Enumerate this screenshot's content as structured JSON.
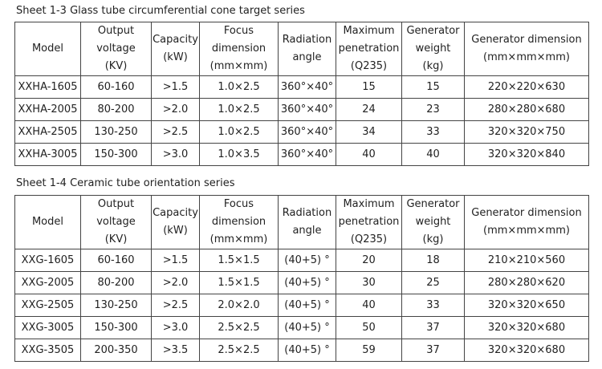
{
  "tables": [
    {
      "caption": "Sheet 1-3 Glass tube circumferential cone target series",
      "header": [
        "Model",
        "Output\nvoltage\n(KV)",
        "Capacity\n(kW)",
        "Focus\ndimension\n(mm×mm)",
        "Radiation\nangle",
        "Maximum\npenetration\n(Q235)",
        "Generator\nweight\n(kg)",
        "Generator dimension\n(mm×mm×mm)"
      ],
      "rows": [
        [
          "XXHA-1605",
          "60-160",
          ">1.5",
          "1.0×2.5",
          "360°×40°",
          "15",
          "15",
          "220×220×630"
        ],
        [
          "XXHA-2005",
          "80-200",
          ">2.0",
          "1.0×2.5",
          "360°×40°",
          "24",
          "23",
          "280×280×680"
        ],
        [
          "XXHA-2505",
          "130-250",
          ">2.5",
          "1.0×2.5",
          "360°×40°",
          "34",
          "33",
          "320×320×750"
        ],
        [
          "XXHA-3005",
          "150-300",
          ">3.0",
          "1.0×3.5",
          "360°×40°",
          "40",
          "40",
          "320×320×840"
        ]
      ]
    },
    {
      "caption": "Sheet 1-4 Ceramic tube orientation series",
      "header": [
        "Model",
        "Output\nvoltage\n(KV)",
        "Capacity\n(kW)",
        "Focus\ndimension\n(mm×mm)",
        "Radiation\nangle",
        "Maximum\npenetration\n(Q235)",
        "Generator\nweight\n(kg)",
        "Generator dimension\n(mm×mm×mm)"
      ],
      "rows": [
        [
          "XXG-1605",
          "60-160",
          ">1.5",
          "1.5×1.5",
          "(40+5) °",
          "20",
          "18",
          "210×210×560"
        ],
        [
          "XXG-2005",
          "80-200",
          ">2.0",
          "1.5×1.5",
          "(40+5) °",
          "30",
          "25",
          "280×280×620"
        ],
        [
          "XXG-2505",
          "130-250",
          ">2.5",
          "2.0×2.0",
          "(40+5) °",
          "40",
          "33",
          "320×320×650"
        ],
        [
          "XXG-3005",
          "150-300",
          ">3.0",
          "2.5×2.5",
          "(40+5) °",
          "50",
          "37",
          "320×320×680"
        ],
        [
          "XXG-3505",
          "200-350",
          ">3.5",
          "2.5×2.5",
          "(40+5) °",
          "59",
          "37",
          "320×320×680"
        ]
      ]
    }
  ]
}
